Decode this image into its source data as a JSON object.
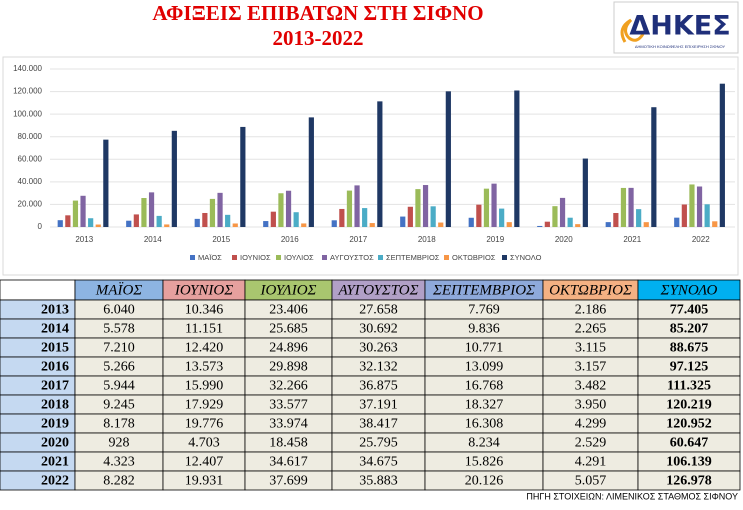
{
  "chart_data": {
    "type": "bar",
    "title": "ΑΦΙΞΕΙΣ ΕΠΙΒΑΤΩΝ ΣΤΗ ΣΙΦΝΟ",
    "subtitle": "2013-2022",
    "categories": [
      "2013",
      "2014",
      "2015",
      "2016",
      "2017",
      "2018",
      "2019",
      "2020",
      "2021",
      "2022"
    ],
    "series": [
      {
        "name": "ΜΑΪΟΣ",
        "color": "#4472c4",
        "values": [
          6040,
          5578,
          7210,
          5266,
          5944,
          9245,
          8178,
          928,
          4323,
          8282
        ],
        "value_labels": [
          "6.040",
          "5.578",
          "7.210",
          "5.266",
          "5.944",
          "9.245",
          "8.178",
          "928",
          "4.323",
          "8.282"
        ]
      },
      {
        "name": "ΙΟΥΝΙΟΣ",
        "color": "#c0504d",
        "values": [
          10346,
          11151,
          12420,
          13573,
          15990,
          17929,
          19776,
          4703,
          12407,
          19931
        ],
        "value_labels": [
          "10.346",
          "11.151",
          "12.420",
          "13.573",
          "15.990",
          "17.929",
          "19.776",
          "4.703",
          "12.407",
          "19.931"
        ]
      },
      {
        "name": "ΙΟΥΛΙΟΣ",
        "color": "#9bbb59",
        "values": [
          23406,
          25685,
          24896,
          29898,
          32266,
          33577,
          33974,
          18458,
          34617,
          37699
        ],
        "value_labels": [
          "23.406",
          "25.685",
          "24.896",
          "29.898",
          "32.266",
          "33.577",
          "33.974",
          "18.458",
          "34.617",
          "37.699"
        ]
      },
      {
        "name": "ΑΥΓΟΥΣΤΟΣ",
        "color": "#8064a2",
        "values": [
          27658,
          30692,
          30263,
          32132,
          36875,
          37191,
          38417,
          25795,
          34675,
          35883
        ],
        "value_labels": [
          "27.658",
          "30.692",
          "30.263",
          "32.132",
          "36.875",
          "37.191",
          "38.417",
          "25.795",
          "34.675",
          "35.883"
        ]
      },
      {
        "name": "ΣΕΠΤΕΜΒΡΙΟΣ",
        "color": "#4bacc6",
        "values": [
          7769,
          9836,
          10771,
          13099,
          16768,
          18327,
          16308,
          8234,
          15826,
          20126
        ],
        "value_labels": [
          "7.769",
          "9.836",
          "10.771",
          "13.099",
          "16.768",
          "18.327",
          "16.308",
          "8.234",
          "15.826",
          "20.126"
        ]
      },
      {
        "name": "ΟΚΤΩΒΡΙΟΣ",
        "color": "#f79646",
        "values": [
          2186,
          2265,
          3115,
          3157,
          3482,
          3950,
          4299,
          2529,
          4291,
          5057
        ],
        "value_labels": [
          "2.186",
          "2.265",
          "3.115",
          "3.157",
          "3.482",
          "3.950",
          "4.299",
          "2.529",
          "4.291",
          "5.057"
        ]
      },
      {
        "name": "ΣΥΝΟΛΟ",
        "color": "#1f3864",
        "values": [
          77405,
          85207,
          88675,
          97125,
          111325,
          120219,
          120952,
          60647,
          106139,
          126978
        ],
        "value_labels": [
          "77.405",
          "85.207",
          "88.675",
          "97.125",
          "111.325",
          "120.219",
          "120.952",
          "60.647",
          "106.139",
          "126.978"
        ]
      }
    ],
    "ylim": [
      0,
      140000
    ],
    "yticks": [
      0,
      {
        "value": 20000,
        "label": "20.000"
      },
      {
        "value": 40000,
        "label": "40.000"
      },
      {
        "value": 60000,
        "label": "60.000"
      },
      {
        "value": 80000,
        "label": "80.000"
      },
      {
        "value": 100000,
        "label": "100.000"
      },
      {
        "value": 120000,
        "label": "120.000"
      },
      {
        "value": 140000,
        "label": "140.000"
      }
    ],
    "grid": true,
    "legend": "bottom"
  },
  "logo": {
    "text": "ΔΗΚΕΣ",
    "tagline": "ΔΗΜΟΤΙΚΗ ΚΟΙΝΩΦΕΛΗΣ ΕΠΙΧΕΙΡΗΣΗ ΣΙΦΝΟΥ"
  },
  "source": "ΠΗΓΗ ΣΤΟΙΧΕΙΩΝ: ΛΙΜΕΝΙΚΟΣ ΣΤΑΘΜΟΣ ΣΙΦΝΟΥ"
}
